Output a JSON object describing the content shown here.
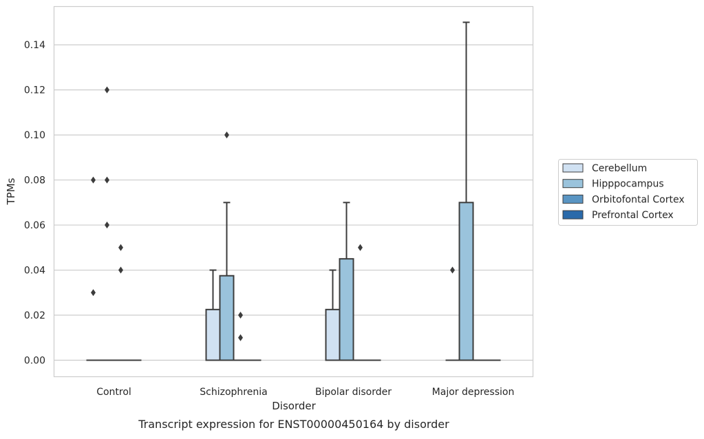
{
  "chart_data": {
    "type": "boxplot",
    "title": "",
    "caption": "Transcript expression for ENST00000450164 by disorder",
    "xlabel": "Disorder",
    "ylabel": "TPMs",
    "ylim": [
      -0.0075,
      0.157
    ],
    "yticks": [
      "0.00",
      "0.02",
      "0.04",
      "0.06",
      "0.08",
      "0.10",
      "0.12",
      "0.14"
    ],
    "grid": "horizontal",
    "legend_position": "right",
    "categories": [
      "Control",
      "Schizophrenia",
      "Bipolar disorder",
      "Major depression"
    ],
    "series": [
      {
        "name": "Cerebellum",
        "color": "#d0e1f2",
        "boxes": [
          {
            "q1": 0,
            "median": 0,
            "q3": 0,
            "whislo": 0,
            "whishi": 0,
            "fliers": [
              0.08,
              0.03
            ]
          },
          {
            "q1": 0,
            "median": 0,
            "q3": 0.0225,
            "whislo": 0,
            "whishi": 0.04,
            "fliers": []
          },
          {
            "q1": 0,
            "median": 0,
            "q3": 0.0225,
            "whislo": 0,
            "whishi": 0.04,
            "fliers": []
          },
          {
            "q1": 0,
            "median": 0,
            "q3": 0,
            "whislo": 0,
            "whishi": 0,
            "fliers": [
              0.04
            ]
          }
        ]
      },
      {
        "name": "Hipppocampus",
        "color": "#9ac3dc",
        "boxes": [
          {
            "q1": 0,
            "median": 0,
            "q3": 0,
            "whislo": 0,
            "whishi": 0,
            "fliers": [
              0.12,
              0.08,
              0.06
            ]
          },
          {
            "q1": 0,
            "median": 0,
            "q3": 0.0375,
            "whislo": 0,
            "whishi": 0.07,
            "fliers": [
              0.1
            ]
          },
          {
            "q1": 0,
            "median": 0,
            "q3": 0.045,
            "whislo": 0,
            "whishi": 0.07,
            "fliers": []
          },
          {
            "q1": 0,
            "median": 0,
            "q3": 0.07,
            "whislo": 0,
            "whishi": 0.15,
            "fliers": []
          }
        ]
      },
      {
        "name": "Orbitofontal Cortex",
        "color": "#5a95c3",
        "boxes": [
          {
            "q1": 0,
            "median": 0,
            "q3": 0,
            "whislo": 0,
            "whishi": 0,
            "fliers": [
              0.05,
              0.04
            ]
          },
          {
            "q1": 0,
            "median": 0,
            "q3": 0,
            "whislo": 0,
            "whishi": 0,
            "fliers": [
              0.02,
              0.01
            ]
          },
          {
            "q1": 0,
            "median": 0,
            "q3": 0,
            "whislo": 0,
            "whishi": 0,
            "fliers": [
              0.05
            ]
          },
          {
            "q1": 0,
            "median": 0,
            "q3": 0,
            "whislo": 0,
            "whishi": 0,
            "fliers": []
          }
        ]
      },
      {
        "name": "Prefrontal Cortex",
        "color": "#2a6aaa",
        "boxes": [
          {
            "q1": 0,
            "median": 0,
            "q3": 0,
            "whislo": 0,
            "whishi": 0,
            "fliers": []
          },
          {
            "q1": 0,
            "median": 0,
            "q3": 0,
            "whislo": 0,
            "whishi": 0,
            "fliers": []
          },
          {
            "q1": 0,
            "median": 0,
            "q3": 0,
            "whislo": 0,
            "whishi": 0,
            "fliers": []
          },
          {
            "q1": 0,
            "median": 0,
            "q3": 0,
            "whislo": 0,
            "whishi": 0,
            "fliers": []
          }
        ]
      }
    ]
  }
}
